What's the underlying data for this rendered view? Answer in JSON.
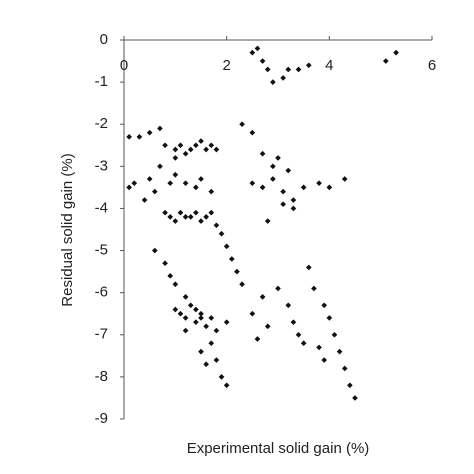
{
  "chart_data": {
    "type": "scatter",
    "x_label": "Experimental solid gain (%)",
    "y_label": "Residual solid gain (%)",
    "color": "#111111",
    "xlim": [
      0,
      6
    ],
    "xticks": [
      0,
      2,
      4,
      6
    ],
    "ylim": [
      -9,
      0
    ],
    "yticks": [
      0,
      -1,
      -2,
      -3,
      -4,
      -5,
      -6,
      -7,
      -8,
      -9
    ],
    "x": [
      2.6,
      2.7,
      2.8,
      2.9,
      2.5,
      3.2,
      3.4,
      3.6,
      3.1,
      5.1,
      5.3,
      0.1,
      0.3,
      0.5,
      0.7,
      0.8,
      1.0,
      1.1,
      1.2,
      1.3,
      1.4,
      1.5,
      1.6,
      1.7,
      1.8,
      1.0,
      2.3,
      2.5,
      2.7,
      2.9,
      3.0,
      3.2,
      0.1,
      0.2,
      0.4,
      0.5,
      0.6,
      0.7,
      0.9,
      1.0,
      1.2,
      1.4,
      1.5,
      1.7,
      2.5,
      2.7,
      2.9,
      3.1,
      3.3,
      3.5,
      3.8,
      4.0,
      4.3,
      3.3,
      3.1,
      2.8,
      0.8,
      0.9,
      1.0,
      1.1,
      1.2,
      1.3,
      1.4,
      1.5,
      1.6,
      1.7,
      1.8,
      1.9,
      2.0,
      2.1,
      2.2,
      2.3,
      0.6,
      0.8,
      0.9,
      1.0,
      1.2,
      1.4,
      1.5,
      1.6,
      1.7,
      1.8,
      1.9,
      2.0,
      1.5,
      1.6,
      1.0,
      1.1,
      1.2,
      1.3,
      1.4,
      1.5,
      1.7,
      1.8,
      2.0,
      1.2,
      3.0,
      3.2,
      3.3,
      3.4,
      3.5,
      3.6,
      3.7,
      3.9,
      4.0,
      4.1,
      4.2,
      4.3,
      4.4,
      4.5,
      3.8,
      3.9,
      2.8,
      2.6,
      2.5,
      2.7
    ],
    "y": [
      -0.2,
      -0.5,
      -0.7,
      -1.0,
      -0.3,
      -0.7,
      -0.7,
      -0.6,
      -0.9,
      -0.5,
      -0.3,
      -2.3,
      -2.3,
      -2.2,
      -2.1,
      -2.5,
      -2.6,
      -2.5,
      -2.7,
      -2.6,
      -2.5,
      -2.4,
      -2.6,
      -2.5,
      -2.6,
      -2.8,
      -2.0,
      -2.2,
      -2.7,
      -3.0,
      -2.8,
      -3.1,
      -3.5,
      -3.4,
      -3.8,
      -3.3,
      -3.6,
      -3.0,
      -3.4,
      -3.2,
      -3.4,
      -3.5,
      -3.3,
      -3.6,
      -3.4,
      -3.5,
      -3.3,
      -3.6,
      -3.8,
      -3.5,
      -3.4,
      -3.5,
      -3.3,
      -4.0,
      -3.9,
      -4.3,
      -4.1,
      -4.2,
      -4.3,
      -4.1,
      -4.2,
      -4.2,
      -4.1,
      -4.3,
      -4.2,
      -4.1,
      -4.4,
      -4.6,
      -4.9,
      -5.2,
      -5.5,
      -5.8,
      -5.0,
      -5.3,
      -5.6,
      -5.8,
      -6.1,
      -6.4,
      -6.6,
      -6.8,
      -7.2,
      -7.6,
      -8.0,
      -8.2,
      -7.4,
      -7.7,
      -6.4,
      -6.5,
      -6.6,
      -6.3,
      -6.7,
      -6.5,
      -6.6,
      -6.9,
      -6.7,
      -6.9,
      -5.9,
      -6.3,
      -6.7,
      -7.0,
      -7.2,
      -5.4,
      -5.9,
      -6.3,
      -6.6,
      -7.0,
      -7.4,
      -7.8,
      -8.2,
      -8.5,
      -7.3,
      -7.6,
      -6.8,
      -7.1,
      -6.5,
      -6.1
    ]
  }
}
